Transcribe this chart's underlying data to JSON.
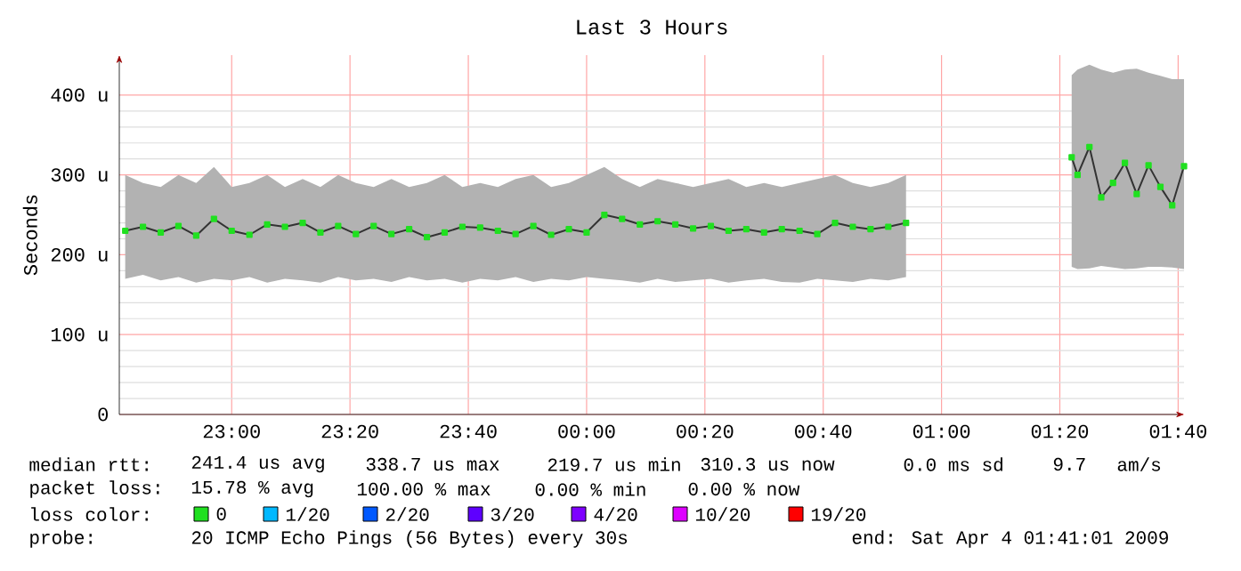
{
  "chart_data": {
    "type": "line",
    "title": "Last 3 Hours",
    "ylabel": "Seconds",
    "xlim": [
      "2009-04-03T22:41",
      "2009-04-04T01:41"
    ],
    "ylim": [
      0,
      450
    ],
    "xticks": [
      {
        "value": "2009-04-03T23:00",
        "label": "23:00"
      },
      {
        "value": "2009-04-03T23:20",
        "label": "23:20"
      },
      {
        "value": "2009-04-03T23:40",
        "label": "23:40"
      },
      {
        "value": "2009-04-04T00:00",
        "label": "00:00"
      },
      {
        "value": "2009-04-04T00:20",
        "label": "00:20"
      },
      {
        "value": "2009-04-04T00:40",
        "label": "00:40"
      },
      {
        "value": "2009-04-04T01:00",
        "label": "01:00"
      },
      {
        "value": "2009-04-04T01:20",
        "label": "01:20"
      },
      {
        "value": "2009-04-04T01:40",
        "label": "01:40"
      }
    ],
    "yticks": [
      {
        "value": 0,
        "label": "0"
      },
      {
        "value": 100,
        "label": "100 u"
      },
      {
        "value": 200,
        "label": "200 u"
      },
      {
        "value": 300,
        "label": "300 u"
      },
      {
        "value": 400,
        "label": "400 u"
      }
    ],
    "grid": true,
    "marker": "square",
    "line_style": "solid",
    "legend": "bottom",
    "legend_title": "loss color:",
    "series": [
      {
        "name": "0",
        "color": "#20e020",
        "x": [
          "2009-04-03T22:42",
          "2009-04-03T22:45",
          "2009-04-03T22:48",
          "2009-04-03T22:51",
          "2009-04-03T22:54",
          "2009-04-03T22:57",
          "2009-04-03T23:00",
          "2009-04-03T23:03",
          "2009-04-03T23:06",
          "2009-04-03T23:09",
          "2009-04-03T23:12",
          "2009-04-03T23:15",
          "2009-04-03T23:18",
          "2009-04-03T23:21",
          "2009-04-03T23:24",
          "2009-04-03T23:27",
          "2009-04-03T23:30",
          "2009-04-03T23:33",
          "2009-04-03T23:36",
          "2009-04-03T23:39",
          "2009-04-03T23:42",
          "2009-04-03T23:45",
          "2009-04-03T23:48",
          "2009-04-03T23:51",
          "2009-04-03T23:54",
          "2009-04-03T23:57",
          "2009-04-04T00:00",
          "2009-04-04T00:03",
          "2009-04-04T00:06",
          "2009-04-04T00:09",
          "2009-04-04T00:12",
          "2009-04-04T00:15",
          "2009-04-04T00:18",
          "2009-04-04T00:21",
          "2009-04-04T00:24",
          "2009-04-04T00:27",
          "2009-04-04T00:30",
          "2009-04-04T00:33",
          "2009-04-04T00:36",
          "2009-04-04T00:39",
          "2009-04-04T00:42",
          "2009-04-04T00:45",
          "2009-04-04T00:48",
          "2009-04-04T00:51",
          "2009-04-04T00:54"
        ],
        "values": [
          230,
          235,
          228,
          236,
          224,
          245,
          230,
          225,
          238,
          235,
          240,
          228,
          236,
          226,
          236,
          226,
          232,
          222,
          228,
          235,
          234,
          230,
          226,
          236,
          225,
          232,
          228,
          250,
          245,
          238,
          242,
          238,
          233,
          236,
          230,
          232,
          228,
          232,
          230,
          226,
          240,
          235,
          232,
          235,
          240
        ],
        "lower": [
          170,
          175,
          168,
          172,
          165,
          170,
          168,
          172,
          165,
          170,
          168,
          165,
          172,
          168,
          170,
          166,
          172,
          168,
          170,
          165,
          170,
          168,
          172,
          166,
          170,
          168,
          172,
          170,
          168,
          165,
          170,
          166,
          168,
          170,
          165,
          168,
          170,
          166,
          165,
          170,
          168,
          166,
          170,
          168,
          172
        ],
        "upper": [
          300,
          290,
          285,
          300,
          290,
          310,
          285,
          290,
          300,
          285,
          295,
          285,
          300,
          290,
          285,
          295,
          285,
          290,
          300,
          285,
          290,
          285,
          295,
          300,
          285,
          290,
          300,
          310,
          295,
          285,
          295,
          290,
          285,
          290,
          295,
          285,
          290,
          285,
          290,
          295,
          300,
          290,
          285,
          290,
          300
        ]
      },
      {
        "color": "#20e020",
        "x": [
          "2009-04-04T01:22",
          "2009-04-04T01:23",
          "2009-04-04T01:25",
          "2009-04-04T01:27",
          "2009-04-04T01:29",
          "2009-04-04T01:31",
          "2009-04-04T01:33",
          "2009-04-04T01:35",
          "2009-04-04T01:37",
          "2009-04-04T01:39",
          "2009-04-04T01:41"
        ],
        "values": [
          322,
          300,
          335,
          272,
          290,
          315,
          276,
          312,
          285,
          262,
          311
        ],
        "lower": [
          185,
          182,
          183,
          186,
          184,
          182,
          183,
          185,
          185,
          184,
          182
        ],
        "upper": [
          425,
          432,
          438,
          432,
          428,
          432,
          433,
          428,
          424,
          420,
          420
        ]
      },
      {
        "name": "1/20",
        "color": "#00b8ff"
      },
      {
        "name": "2/20",
        "color": "#0059ff"
      },
      {
        "name": "3/20",
        "color": "#5e00ff"
      },
      {
        "name": "4/20",
        "color": "#7e00ff"
      },
      {
        "name": "10/20",
        "color": "#dd00ff"
      },
      {
        "name": "19/20",
        "color": "#ff0000"
      }
    ],
    "annotations": [
      "median rtt:",
      "241.4 us avg",
      "338.7 us max",
      "219.7 us min",
      "310.3 us now",
      "0.0 ms sd",
      "9.7",
      "am/s",
      "packet loss:",
      "15.78 % avg",
      "100.00 % max",
      "0.00 % min",
      "0.00 % now",
      "probe:",
      "20 ICMP Echo Pings (56 Bytes) every 30s",
      "end: Sat Apr  4 01:41:01 2009"
    ]
  }
}
